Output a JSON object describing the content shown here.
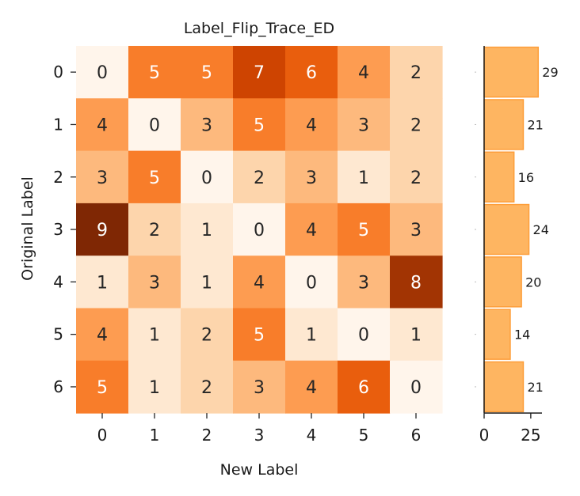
{
  "chart_data": [
    {
      "type": "heatmap",
      "title": "Label_Flip_Trace_ED",
      "xlabel": "New Label",
      "ylabel": "Original Label",
      "x_categories": [
        "0",
        "1",
        "2",
        "3",
        "4",
        "5",
        "6"
      ],
      "y_categories": [
        "0",
        "1",
        "2",
        "3",
        "4",
        "5",
        "6"
      ],
      "matrix": [
        [
          0,
          5,
          5,
          7,
          6,
          4,
          2
        ],
        [
          4,
          0,
          3,
          5,
          4,
          3,
          2
        ],
        [
          3,
          5,
          0,
          2,
          3,
          1,
          2
        ],
        [
          9,
          2,
          1,
          0,
          4,
          5,
          3
        ],
        [
          1,
          3,
          1,
          4,
          0,
          3,
          8
        ],
        [
          4,
          1,
          2,
          5,
          1,
          0,
          1
        ],
        [
          5,
          1,
          2,
          3,
          4,
          6,
          0
        ]
      ],
      "colormap": "Oranges",
      "value_range": [
        0,
        9
      ]
    },
    {
      "type": "bar",
      "orientation": "horizontal",
      "categories": [
        "0",
        "1",
        "2",
        "3",
        "4",
        "5",
        "6"
      ],
      "values": [
        29,
        21,
        16,
        24,
        20,
        14,
        21
      ],
      "x_ticks": [
        "0",
        "25"
      ],
      "x_tick_values": [
        0,
        25
      ],
      "xlim": [
        0,
        31
      ],
      "bar_color": "#feb561",
      "bar_edge_color": "#fd9e3a"
    }
  ]
}
